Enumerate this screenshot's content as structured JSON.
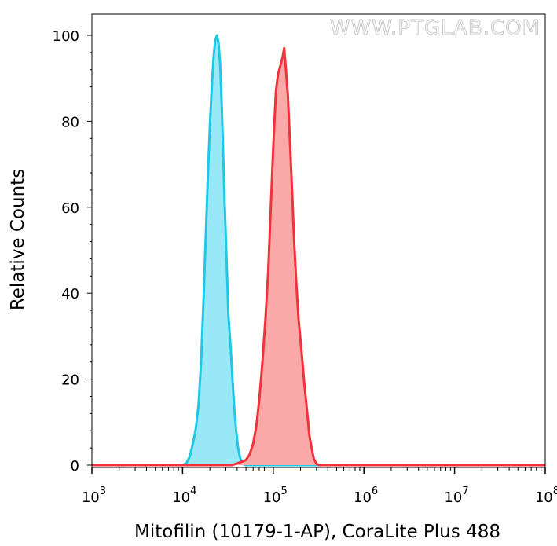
{
  "watermark": "WWW.PTGLAB.COM",
  "chart_data": {
    "type": "area",
    "title": "",
    "xlabel": "Mitofilin (10179-1-AP), CoraLite Plus 488",
    "ylabel": "Relative Counts",
    "x_scale": "log",
    "xlim": [
      1000,
      100000000
    ],
    "ylim": [
      0,
      105
    ],
    "x_ticks": [
      {
        "base": "10",
        "exp": "3",
        "value": 1000
      },
      {
        "base": "10",
        "exp": "4",
        "value": 10000
      },
      {
        "base": "10",
        "exp": "5",
        "value": 100000
      },
      {
        "base": "10",
        "exp": "6",
        "value": 1000000
      },
      {
        "base": "10",
        "exp": "7",
        "value": 10000000
      },
      {
        "base": "10",
        "exp": "8",
        "value": 100000000
      }
    ],
    "y_ticks": [
      {
        "label": "0",
        "value": 0
      },
      {
        "label": "20",
        "value": 20
      },
      {
        "label": "40",
        "value": 40
      },
      {
        "label": "60",
        "value": 60
      },
      {
        "label": "80",
        "value": 80
      },
      {
        "label": "100",
        "value": 100
      }
    ],
    "grid": false,
    "series": [
      {
        "color": "#1ec8e6",
        "fill": "#99e8f8",
        "points": [
          [
            1000,
            0
          ],
          [
            10000,
            0
          ],
          [
            11000,
            0.4
          ],
          [
            12000,
            2
          ],
          [
            13000,
            5
          ],
          [
            14000,
            8.5
          ],
          [
            15000,
            14
          ],
          [
            16000,
            24
          ],
          [
            17000,
            38
          ],
          [
            18000,
            53
          ],
          [
            19000,
            67
          ],
          [
            20000,
            79
          ],
          [
            21000,
            88
          ],
          [
            22000,
            95
          ],
          [
            23000,
            99
          ],
          [
            24000,
            100
          ],
          [
            25000,
            98
          ],
          [
            26000,
            93
          ],
          [
            27000,
            84
          ],
          [
            28000,
            73
          ],
          [
            29000,
            62
          ],
          [
            30000,
            53
          ],
          [
            31000,
            44
          ],
          [
            32000,
            35
          ],
          [
            34000,
            27
          ],
          [
            35500,
            20
          ],
          [
            37000,
            14
          ],
          [
            39000,
            8
          ],
          [
            41000,
            4
          ],
          [
            43000,
            1.8
          ],
          [
            45000,
            0.7
          ],
          [
            47000,
            0.2
          ],
          [
            50000,
            0
          ],
          [
            100000000,
            0
          ]
        ]
      },
      {
        "color": "#f0333b",
        "fill": "#faa8a8",
        "points": [
          [
            1000,
            0
          ],
          [
            35000,
            0
          ],
          [
            40000,
            0.4
          ],
          [
            45000,
            0.8
          ],
          [
            50000,
            1.2
          ],
          [
            55000,
            2.5
          ],
          [
            60000,
            5
          ],
          [
            65000,
            9
          ],
          [
            70000,
            15
          ],
          [
            76000,
            24
          ],
          [
            82000,
            34
          ],
          [
            88000,
            45
          ],
          [
            94000,
            60
          ],
          [
            100000,
            74
          ],
          [
            107000,
            87
          ],
          [
            113000,
            91
          ],
          [
            120000,
            93
          ],
          [
            127000,
            95
          ],
          [
            132000,
            97
          ],
          [
            138000,
            92
          ],
          [
            145000,
            86
          ],
          [
            153000,
            75
          ],
          [
            162000,
            63
          ],
          [
            170000,
            52
          ],
          [
            180000,
            42
          ],
          [
            190000,
            34
          ],
          [
            200000,
            29
          ],
          [
            210000,
            24
          ],
          [
            220000,
            19
          ],
          [
            235000,
            13
          ],
          [
            250000,
            7
          ],
          [
            265000,
            4
          ],
          [
            280000,
            1.5
          ],
          [
            300000,
            0.3
          ],
          [
            320000,
            0
          ],
          [
            100000000,
            0
          ]
        ]
      }
    ]
  }
}
